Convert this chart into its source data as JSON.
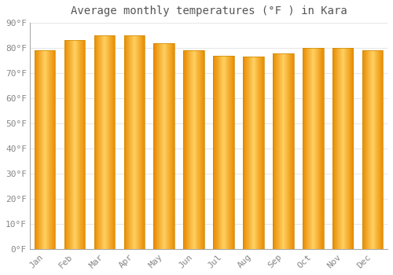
{
  "title": "Average monthly temperatures (°F ) in Kara",
  "months": [
    "Jan",
    "Feb",
    "Mar",
    "Apr",
    "May",
    "Jun",
    "Jul",
    "Aug",
    "Sep",
    "Oct",
    "Nov",
    "Dec"
  ],
  "values": [
    79,
    83,
    85,
    85,
    82,
    79,
    77,
    76.5,
    78,
    80,
    80,
    79
  ],
  "ylim": [
    0,
    90
  ],
  "yticks": [
    0,
    10,
    20,
    30,
    40,
    50,
    60,
    70,
    80,
    90
  ],
  "bar_color_main": "#FFA500",
  "bar_color_light": "#FFD060",
  "bar_color_dark": "#E88A00",
  "background_color": "#FFFFFF",
  "plot_bg_color": "#FFFFFF",
  "grid_color": "#E8E8E8",
  "text_color": "#888888",
  "title_color": "#555555",
  "spine_color": "#AAAAAA",
  "title_fontsize": 10,
  "tick_fontsize": 8
}
